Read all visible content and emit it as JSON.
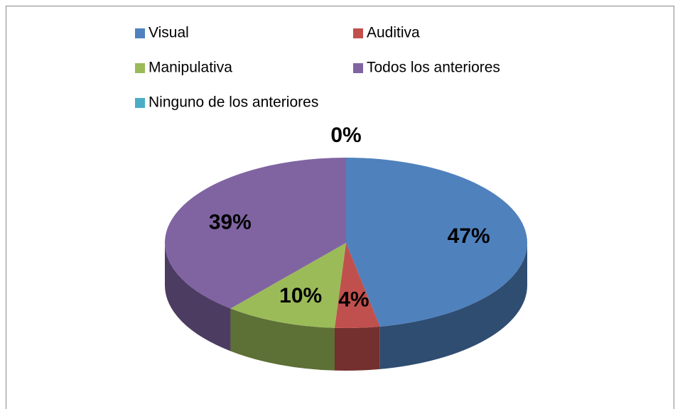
{
  "chart_data": {
    "type": "pie3d",
    "categories": [
      "Visual",
      "Auditiva",
      "Manipulativa",
      "Todos los anteriores",
      "Ninguno de los anteriores"
    ],
    "values": [
      47,
      4,
      10,
      39,
      0
    ],
    "value_labels": [
      "47%",
      "4%",
      "10%",
      "39%",
      "0%"
    ],
    "colors": [
      "#4f81bd",
      "#c0504d",
      "#9bbb59",
      "#8064a2",
      "#4bacc6"
    ],
    "legend": "top"
  }
}
